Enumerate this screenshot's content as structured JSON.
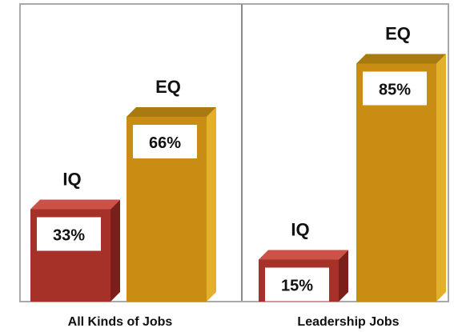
{
  "chart_data": {
    "type": "bar",
    "categories": [
      "All Kinds of Jobs",
      "Leadership Jobs"
    ],
    "series": [
      {
        "name": "IQ",
        "values": [
          33,
          15
        ]
      },
      {
        "name": "EQ",
        "values": [
          66,
          85
        ]
      }
    ],
    "value_labels": {
      "IQ": [
        "33%",
        "15%"
      ],
      "EQ": [
        "66%",
        "85%"
      ]
    },
    "ylim": [
      0,
      100
    ],
    "grid": false,
    "colors": {
      "IQ": {
        "front": "#a63129",
        "top": "#cc5248",
        "side": "#7a1f19"
      },
      "EQ": {
        "front": "#c88d12",
        "top": "#a87a10",
        "side": "#e2b02a"
      },
      "frame": "#a9a9a9",
      "divider": "#8a8a8a"
    }
  }
}
